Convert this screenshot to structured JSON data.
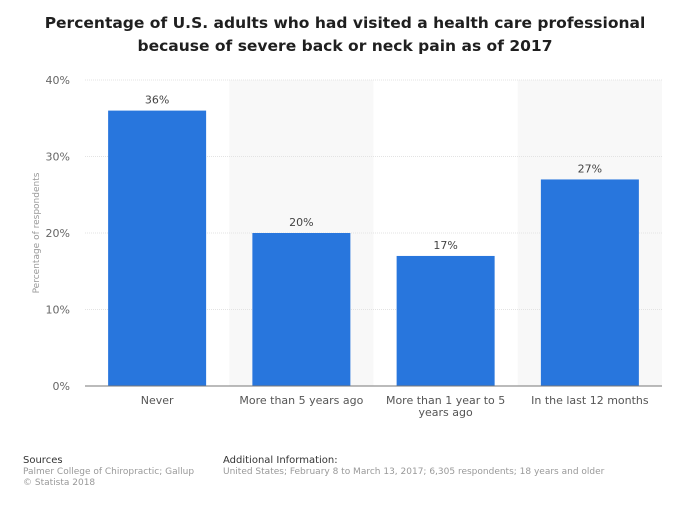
{
  "title": {
    "line1": "Percentage of U.S. adults who had visited a health care professional",
    "line2": "because of severe back or neck pain as of 2017"
  },
  "chart_data": {
    "type": "bar",
    "title": "Percentage of U.S. adults who had visited a health care professional because of severe back or neck pain as of 2017",
    "categories": [
      "Never",
      "More than 5 years ago",
      "More than 1 year to 5 years ago",
      "In the last 12 months"
    ],
    "category_lines": [
      [
        "Never"
      ],
      [
        "More than 5 years ago"
      ],
      [
        "More than 1 year to 5",
        "years ago"
      ],
      [
        "In the last 12 months"
      ]
    ],
    "values": [
      36,
      20,
      17,
      27
    ],
    "data_labels": [
      "36%",
      "20%",
      "17%",
      "27%"
    ],
    "ylabel": "Percentage of respondents",
    "xlabel": "",
    "ylim": [
      0,
      40
    ],
    "yticks": [
      0,
      10,
      20,
      30,
      40
    ],
    "ytick_labels": [
      "0%",
      "10%",
      "20%",
      "30%",
      "40%"
    ],
    "grid": true,
    "bar_color": "#2876dd"
  },
  "footer": {
    "sources_title": "Sources",
    "sources_line1": "Palmer College of Chiropractic; Gallup",
    "sources_line2": "© Statista 2018",
    "info_title": "Additional Information:",
    "info_text": "United States; February 8 to March 13, 2017; 6,305 respondents; 18 years and older"
  }
}
